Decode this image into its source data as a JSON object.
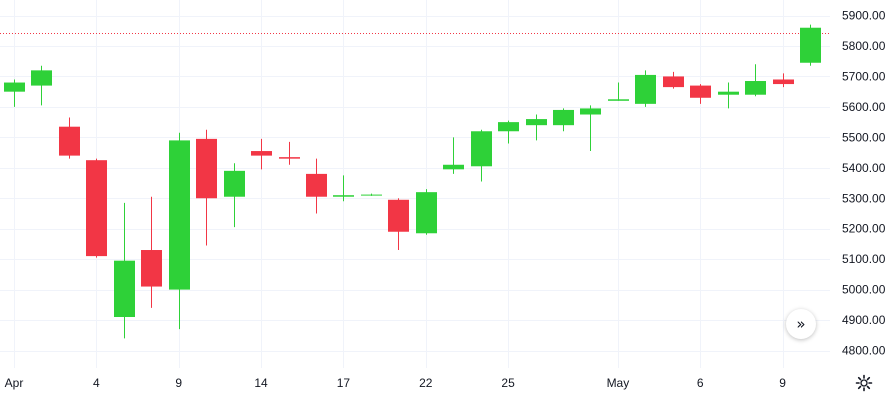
{
  "chart_data": {
    "type": "candlestick",
    "ylim": [
      4740,
      5920
    ],
    "y_ticks": [
      4800,
      4900,
      5000,
      5100,
      5200,
      5300,
      5400,
      5500,
      5600,
      5700,
      5800,
      5900
    ],
    "y_tick_labels": [
      "4800.00",
      "4900.00",
      "5000.00",
      "5100.00",
      "5200.00",
      "5300.00",
      "5400.00",
      "5500.00",
      "5600.00",
      "5700.00",
      "5800.00",
      "5900.00"
    ],
    "x_tick_labels": [
      "Apr",
      "4",
      "9",
      "14",
      "17",
      "22",
      "25",
      "May",
      "6",
      "9"
    ],
    "x_tick_slots": [
      0,
      3,
      6,
      9,
      12,
      15,
      18,
      22,
      25,
      28
    ],
    "price_line": 5843,
    "grid": true,
    "colors": {
      "up": "#2ed138",
      "down": "#f23645",
      "grid": "#f0f3fa",
      "price_line": "#f23645"
    },
    "candles": [
      {
        "o": 5650,
        "h": 5690,
        "l": 5600,
        "c": 5680
      },
      {
        "o": 5670,
        "h": 5735,
        "l": 5605,
        "c": 5720
      },
      {
        "o": 5535,
        "h": 5565,
        "l": 5430,
        "c": 5440
      },
      {
        "o": 5425,
        "h": 5430,
        "l": 5105,
        "c": 5110
      },
      {
        "o": 4910,
        "h": 5285,
        "l": 4840,
        "c": 5095
      },
      {
        "o": 5130,
        "h": 5305,
        "l": 4940,
        "c": 5010
      },
      {
        "o": 5000,
        "h": 5515,
        "l": 4870,
        "c": 5490
      },
      {
        "o": 5495,
        "h": 5525,
        "l": 5145,
        "c": 5300
      },
      {
        "o": 5305,
        "h": 5415,
        "l": 5205,
        "c": 5390
      },
      {
        "o": 5455,
        "h": 5495,
        "l": 5395,
        "c": 5440
      },
      {
        "o": 5435,
        "h": 5485,
        "l": 5410,
        "c": 5430
      },
      {
        "o": 5380,
        "h": 5430,
        "l": 5250,
        "c": 5305
      },
      {
        "o": 5305,
        "h": 5375,
        "l": 5290,
        "c": 5310
      },
      {
        "o": 5310,
        "h": 5315,
        "l": 5308,
        "c": 5312
      },
      {
        "o": 5295,
        "h": 5300,
        "l": 5130,
        "c": 5190
      },
      {
        "o": 5185,
        "h": 5330,
        "l": 5180,
        "c": 5320
      },
      {
        "o": 5395,
        "h": 5500,
        "l": 5380,
        "c": 5410
      },
      {
        "o": 5405,
        "h": 5525,
        "l": 5355,
        "c": 5520
      },
      {
        "o": 5520,
        "h": 5555,
        "l": 5480,
        "c": 5550
      },
      {
        "o": 5540,
        "h": 5575,
        "l": 5490,
        "c": 5560
      },
      {
        "o": 5540,
        "h": 5595,
        "l": 5520,
        "c": 5590
      },
      {
        "o": 5575,
        "h": 5605,
        "l": 5455,
        "c": 5595
      },
      {
        "o": 5620,
        "h": 5680,
        "l": 5620,
        "c": 5625
      },
      {
        "o": 5610,
        "h": 5720,
        "l": 5600,
        "c": 5705
      },
      {
        "o": 5700,
        "h": 5715,
        "l": 5660,
        "c": 5665
      },
      {
        "o": 5670,
        "h": 5675,
        "l": 5610,
        "c": 5630
      },
      {
        "o": 5640,
        "h": 5680,
        "l": 5595,
        "c": 5650
      },
      {
        "o": 5640,
        "h": 5740,
        "l": 5635,
        "c": 5685
      },
      {
        "o": 5690,
        "h": 5710,
        "l": 5665,
        "c": 5675
      },
      {
        "o": 5745,
        "h": 5870,
        "l": 5735,
        "c": 5860
      }
    ]
  },
  "ui": {
    "scroll_icon": "double-chevron-right-icon",
    "settings_icon": "gear-icon",
    "scroll_glyph": "»"
  }
}
